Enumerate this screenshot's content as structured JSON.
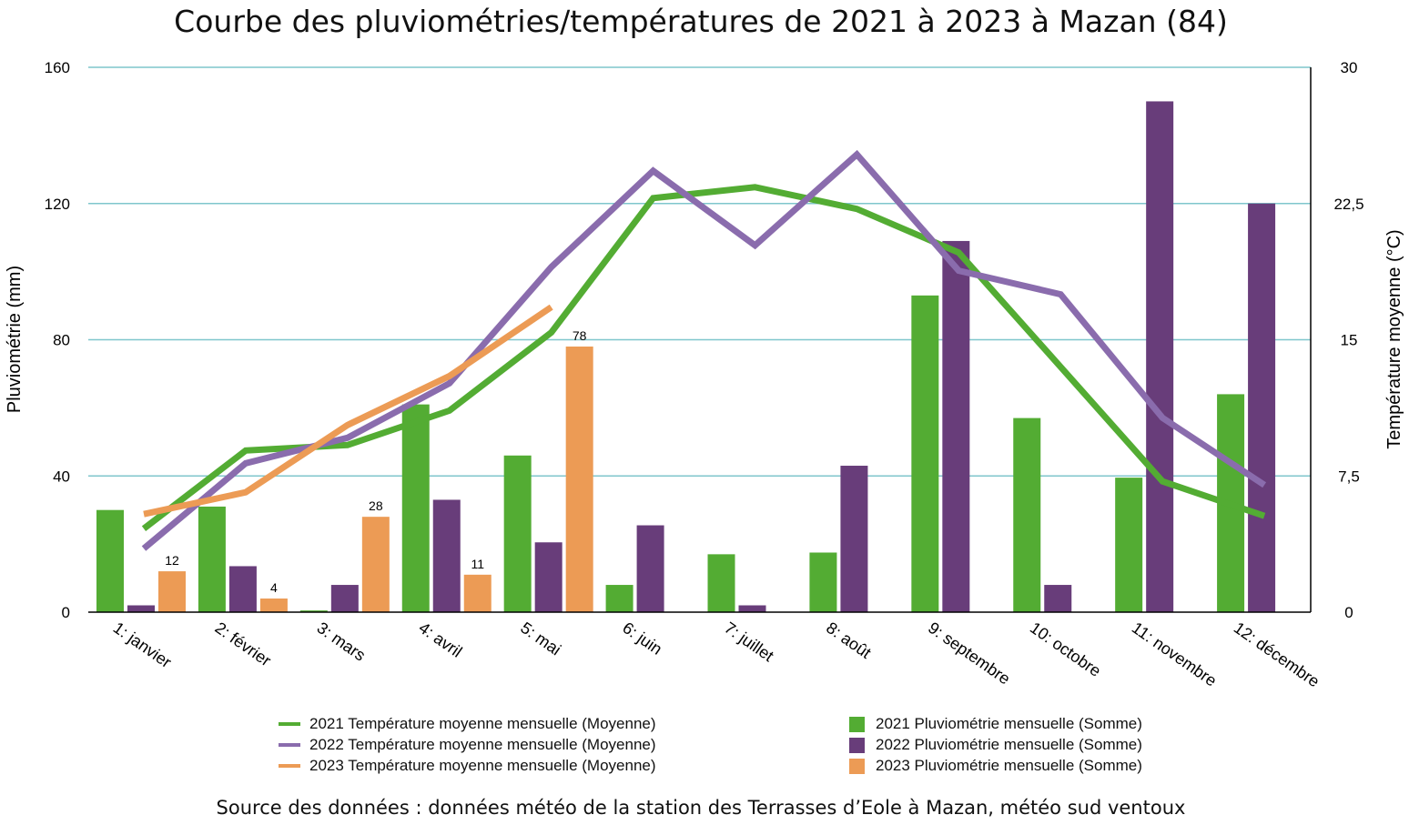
{
  "chart_data": {
    "type": "bar",
    "title": "Courbe des pluviométries/températures de 2021 à 2023 à Mazan (84)",
    "ylabel": "Pluviométrie (mm)",
    "y2label": "Température moyenne (°C)",
    "ylim": [
      0,
      160
    ],
    "y2lim": [
      0,
      30
    ],
    "yticks": [
      "0",
      "40",
      "80",
      "120",
      "160"
    ],
    "y2ticks": [
      "0",
      "7,5",
      "15",
      "22,5",
      "30"
    ],
    "grid": true,
    "legend_position": "bottom",
    "categories": [
      "1: janvier",
      "2: février",
      "3: mars",
      "4: avril",
      "5: mai",
      "6: juin",
      "7: juillet",
      "8: août",
      "9: septembre",
      "10: octobre",
      "11: novembre",
      "12: décembre"
    ],
    "bar_series": [
      {
        "name": "2021 Pluviométrie mensuelle (Somme)",
        "color": "#53ac33",
        "values": [
          30,
          31,
          0.5,
          61,
          46,
          8,
          17,
          17.5,
          93,
          57,
          39.5,
          64
        ]
      },
      {
        "name": "2022 Pluviométrie mensuelle (Somme)",
        "color": "#683d7a",
        "values": [
          2,
          13.5,
          8,
          33,
          20.5,
          25.5,
          2,
          43,
          109,
          8,
          150,
          120
        ]
      },
      {
        "name": "2023 Pluviométrie mensuelle (Somme)",
        "color": "#ec9b55",
        "values": [
          12,
          4,
          28,
          11,
          78,
          null,
          null,
          null,
          null,
          null,
          null,
          null
        ],
        "labels": [
          "12",
          "4",
          "28",
          "11",
          "78"
        ]
      }
    ],
    "line_series": [
      {
        "name": "2021 Température moyenne mensuelle (Moyenne)",
        "color": "#53ac33",
        "values": [
          4.6,
          8.9,
          9.2,
          11.1,
          15.4,
          22.8,
          23.4,
          22.2,
          19.8,
          13.5,
          7.2,
          5.3
        ]
      },
      {
        "name": "2022 Température moyenne mensuelle (Moyenne)",
        "color": "#8a6cad",
        "values": [
          3.5,
          8.2,
          9.6,
          12.6,
          19.0,
          24.3,
          20.2,
          25.2,
          18.8,
          17.5,
          10.7,
          7.0
        ]
      },
      {
        "name": "2023 Température moyenne mensuelle (Moyenne)",
        "color": "#ec9b55",
        "values": [
          5.4,
          6.6,
          10.3,
          13.0,
          16.8,
          null,
          null,
          null,
          null,
          null,
          null,
          null
        ]
      }
    ]
  },
  "legend": [
    {
      "kind": "line",
      "color": "#53ac33",
      "label": "2021 Température moyenne mensuelle (Moyenne)"
    },
    {
      "kind": "line",
      "color": "#8a6cad",
      "label": "2022 Température moyenne mensuelle (Moyenne)"
    },
    {
      "kind": "line",
      "color": "#ec9b55",
      "label": "2023 Température moyenne mensuelle (Moyenne)"
    },
    {
      "kind": "box",
      "color": "#53ac33",
      "label": "2021 Pluviométrie mensuelle (Somme)"
    },
    {
      "kind": "box",
      "color": "#683d7a",
      "label": "2022 Pluviométrie mensuelle (Somme)"
    },
    {
      "kind": "box",
      "color": "#ec9b55",
      "label": "2023 Pluviométrie mensuelle (Somme)"
    }
  ],
  "source_note": "Source des données : données météo de la station des Terrasses d’Eole à Mazan, météo sud ventoux",
  "colors": {
    "grid": "#7fc6cc",
    "axis": "#000000"
  }
}
